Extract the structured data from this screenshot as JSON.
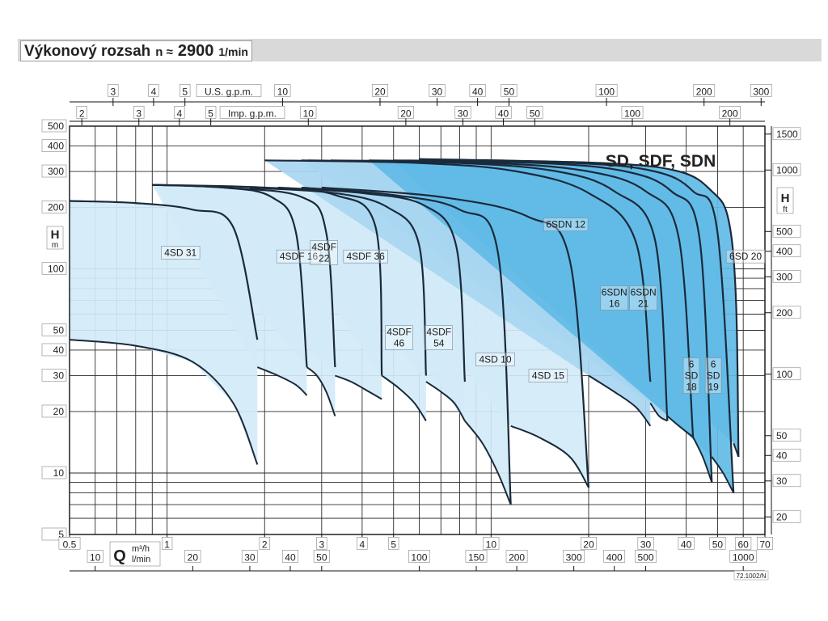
{
  "title": {
    "main": "Výkonový rozsah",
    "n": "n ≈",
    "speed": "2900",
    "unit": "1/min"
  },
  "colors": {
    "light_region": "#d2eaf8",
    "mid_region": "#a8d6f1",
    "dark_region": "#62bbe6",
    "curve": "#1a2a3a",
    "grid": "#2b2b2b"
  },
  "chart_data": {
    "type": "area",
    "title": "SD, SDF, SDN",
    "xlabel": "Q",
    "x_unit_main": "m³/h",
    "x_unit_alt": "l/min",
    "us_gpm_label": "U.S. g.p.m.",
    "imp_gpm_label": "Imp. g.p.m.",
    "ylabel_left": "H",
    "ylabel_left_unit": "m",
    "ylabel_right": "H",
    "ylabel_right_unit": "ft",
    "x_scale": "log",
    "y_scale": "log",
    "xlim": [
      0.5,
      70
    ],
    "ylim": [
      5,
      500
    ],
    "grid": true,
    "ticks": {
      "y_left": [
        "500",
        "400",
        "300",
        "200",
        "100",
        "50",
        "40",
        "30",
        "20",
        "10",
        "5"
      ],
      "y_left_values": [
        500,
        400,
        300,
        200,
        100,
        50,
        40,
        30,
        20,
        10,
        5
      ],
      "y_right": [
        "1500",
        "1000",
        "500",
        "400",
        "300",
        "200",
        "100",
        "50",
        "40",
        "30",
        "20"
      ],
      "y_right_values": [
        1500,
        1000,
        500,
        400,
        300,
        200,
        100,
        50,
        40,
        30,
        20
      ],
      "x_m3h": [
        "0.5",
        "1",
        "2",
        "3",
        "4",
        "5",
        "10",
        "20",
        "30",
        "40",
        "50",
        "60",
        "70"
      ],
      "x_m3h_values": [
        0.5,
        1,
        2,
        3,
        4,
        5,
        10,
        20,
        30,
        40,
        50,
        60,
        70
      ],
      "x_lmin": [
        "10",
        "20",
        "30",
        "40",
        "50",
        "100",
        "150",
        "200",
        "300",
        "400",
        "500",
        "1000"
      ],
      "x_lmin_values": [
        10,
        20,
        30,
        40,
        50,
        100,
        150,
        200,
        300,
        400,
        500,
        1000
      ],
      "x_usgpm": [
        "3",
        "4",
        "5",
        "10",
        "20",
        "30",
        "40",
        "50",
        "100",
        "200",
        "300"
      ],
      "x_usgpm_values": [
        3,
        4,
        5,
        10,
        20,
        30,
        40,
        50,
        100,
        200,
        300
      ],
      "x_impgpm": [
        "2",
        "3",
        "4",
        "5",
        "10",
        "20",
        "30",
        "40",
        "50",
        "100",
        "200"
      ],
      "x_impgpm_values": [
        2,
        3,
        4,
        5,
        10,
        20,
        30,
        40,
        50,
        100,
        200
      ]
    },
    "series": [
      {
        "name": "4SD 31",
        "shade": "light",
        "top": [
          [
            0.5,
            215
          ],
          [
            0.8,
            210
          ],
          [
            1.2,
            195
          ],
          [
            1.6,
            160
          ],
          [
            1.9,
            45
          ]
        ],
        "bottom": [
          [
            0.5,
            45
          ],
          [
            0.8,
            42
          ],
          [
            1.2,
            35
          ],
          [
            1.6,
            22
          ],
          [
            1.9,
            11
          ]
        ]
      },
      {
        "name": "4SDF 16",
        "shade": "light",
        "top": [
          [
            0.9,
            258
          ],
          [
            1.5,
            250
          ],
          [
            2.1,
            225
          ],
          [
            2.5,
            150
          ],
          [
            2.7,
            33
          ]
        ],
        "bottom": [
          [
            1.9,
            33
          ],
          [
            2.2,
            30
          ],
          [
            2.5,
            27
          ],
          [
            2.7,
            24
          ]
        ]
      },
      {
        "name": "4SDF 22",
        "shade": "light",
        "top": [
          [
            0.9,
            258
          ],
          [
            1.5,
            250
          ],
          [
            2.6,
            225
          ],
          [
            3.1,
            150
          ],
          [
            3.3,
            33
          ]
        ],
        "bottom": [
          [
            2.7,
            33
          ],
          [
            2.9,
            30
          ],
          [
            3.1,
            25
          ],
          [
            3.3,
            19
          ]
        ]
      },
      {
        "name": "4SDF 36",
        "shade": "light",
        "top": [
          [
            0.9,
            258
          ],
          [
            2.0,
            250
          ],
          [
            3.3,
            230
          ],
          [
            4.4,
            160
          ],
          [
            4.6,
            30
          ]
        ],
        "bottom": [
          [
            3.3,
            30
          ],
          [
            3.7,
            28
          ],
          [
            4.2,
            25
          ],
          [
            4.6,
            23
          ]
        ]
      },
      {
        "name": "4SDF 46",
        "shade": "light",
        "top": [
          [
            1.8,
            250
          ],
          [
            3.3,
            235
          ],
          [
            4.8,
            200
          ],
          [
            6.0,
            130
          ],
          [
            6.3,
            30
          ]
        ],
        "bottom": [
          [
            4.6,
            30
          ],
          [
            5.2,
            26
          ],
          [
            5.8,
            22
          ],
          [
            6.3,
            18
          ]
        ]
      },
      {
        "name": "4SDF 54",
        "shade": "light",
        "top": [
          [
            2.2,
            250
          ],
          [
            4.0,
            235
          ],
          [
            6.2,
            205
          ],
          [
            7.8,
            130
          ],
          [
            8.3,
            28
          ]
        ],
        "bottom": [
          [
            6.3,
            28
          ],
          [
            7.0,
            25
          ],
          [
            7.7,
            22
          ],
          [
            8.3,
            18
          ]
        ]
      },
      {
        "name": "4SD 10",
        "shade": "light",
        "top": [
          [
            2.6,
            250
          ],
          [
            5.0,
            230
          ],
          [
            8.0,
            195
          ],
          [
            10.5,
            120
          ],
          [
            11.5,
            7
          ]
        ],
        "bottom": [
          [
            8.3,
            18
          ],
          [
            9.4,
            14
          ],
          [
            10.5,
            10
          ],
          [
            11.5,
            7
          ]
        ]
      },
      {
        "name": "4SD 15",
        "shade": "light",
        "top": [
          [
            3.0,
            250
          ],
          [
            7.0,
            225
          ],
          [
            13.0,
            180
          ],
          [
            17.5,
            110
          ],
          [
            20.0,
            8.5
          ]
        ],
        "bottom": [
          [
            11.5,
            17
          ],
          [
            14,
            15
          ],
          [
            17.5,
            12
          ],
          [
            20,
            8.5
          ]
        ]
      },
      {
        "name": "6SDN 12",
        "shade": "mid",
        "top": [
          [
            2.0,
            340
          ],
          [
            6.0,
            330
          ],
          [
            12.0,
            300
          ],
          [
            20.0,
            235
          ],
          [
            28.0,
            135
          ],
          [
            31.0,
            28
          ]
        ],
        "bottom": [
          [
            20,
            30
          ],
          [
            24,
            25
          ],
          [
            28,
            21
          ],
          [
            31,
            17
          ]
        ]
      },
      {
        "name": "6SDN 16",
        "shade": "mid",
        "top": [
          [
            2.6,
            340
          ],
          [
            8.0,
            330
          ],
          [
            16.0,
            300
          ],
          [
            24.0,
            240
          ],
          [
            32.0,
            140
          ],
          [
            35.0,
            18
          ]
        ],
        "bottom": [
          [
            31,
            22
          ],
          [
            33,
            19
          ],
          [
            35,
            18
          ]
        ]
      },
      {
        "name": "6SDN 21",
        "shade": "mid",
        "top": [
          [
            3.2,
            340
          ],
          [
            10.0,
            330
          ],
          [
            20.0,
            300
          ],
          [
            30.0,
            240
          ],
          [
            38.0,
            140
          ],
          [
            42.0,
            15
          ]
        ],
        "bottom": [
          [
            35,
            19
          ],
          [
            38,
            17
          ],
          [
            42,
            15
          ]
        ]
      },
      {
        "name": "6 SD 18",
        "shade": "dark",
        "top": [
          [
            4.2,
            340
          ],
          [
            14.0,
            330
          ],
          [
            26.0,
            300
          ],
          [
            36.0,
            240
          ],
          [
            44.0,
            140
          ],
          [
            48.0,
            9
          ]
        ],
        "bottom": [
          [
            42,
            15
          ],
          [
            45,
            12
          ],
          [
            48,
            9
          ]
        ]
      },
      {
        "name": "6 SD 19",
        "shade": "dark",
        "top": [
          [
            5.0,
            340
          ],
          [
            18.0,
            330
          ],
          [
            32.0,
            300
          ],
          [
            42.0,
            240
          ],
          [
            50.0,
            150
          ],
          [
            56.0,
            8
          ]
        ],
        "bottom": [
          [
            48,
            12
          ],
          [
            52,
            10
          ],
          [
            56,
            8
          ]
        ]
      },
      {
        "name": "6SD 20",
        "shade": "dark",
        "top": [
          [
            6.0,
            345
          ],
          [
            22.0,
            330
          ],
          [
            38.0,
            300
          ],
          [
            48.0,
            240
          ],
          [
            54.0,
            175
          ],
          [
            57.0,
            70
          ],
          [
            58.0,
            12
          ]
        ],
        "bottom": [
          [
            56,
            14
          ],
          [
            57,
            13
          ],
          [
            58,
            12
          ]
        ]
      }
    ],
    "labels": [
      {
        "text": "4SD 31",
        "q": 1.1,
        "h": 120
      },
      {
        "text": "4SDF 16",
        "q": 2.55,
        "h": 115
      },
      {
        "text": "4SDF 22",
        "q": 3.05,
        "h": 120
      },
      {
        "text": "4SDF 36",
        "q": 4.1,
        "h": 115
      },
      {
        "text": "4SDF 46",
        "q": 5.2,
        "h": 46
      },
      {
        "text": "4SDF 54",
        "q": 6.9,
        "h": 46
      },
      {
        "text": "4SD 10",
        "q": 10.3,
        "h": 36
      },
      {
        "text": "4SD 15",
        "q": 15.0,
        "h": 30
      },
      {
        "text": "6SDN 12",
        "q": 17.0,
        "h": 165
      },
      {
        "text": "6SDN 16",
        "q": 24.0,
        "h": 72
      },
      {
        "text": "6SDN 21",
        "q": 29.5,
        "h": 72
      },
      {
        "text": "6 SD 18",
        "q": 41.5,
        "h": 30
      },
      {
        "text": "6 SD 19",
        "q": 48.5,
        "h": 30
      },
      {
        "text": "6SD 20",
        "q": 61.0,
        "h": 115
      }
    ],
    "code": "72.1002/N"
  }
}
